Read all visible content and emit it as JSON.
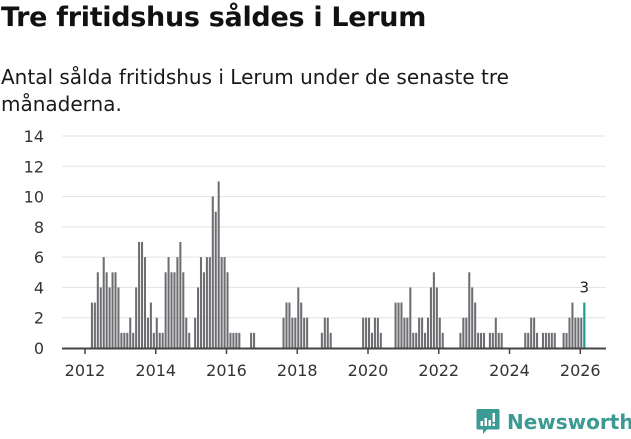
{
  "header": {
    "title": "Tre fritidshus såldes i Lerum",
    "subtitle": "Antal sålda fritidshus i Lerum under de senaste tre månaderna."
  },
  "brand": {
    "name": "Newsworthy",
    "icon": "newsworthy-logo-icon",
    "color": "#3b9a92"
  },
  "colors": {
    "bar": "#6e6d72",
    "highlight": "#1a9e96",
    "grid": "#e3e3e3",
    "axis": "#444444",
    "text": "#333333"
  },
  "chart_data": {
    "type": "bar",
    "title": "Tre fritidshus såldes i Lerum",
    "subtitle": "Antal sålda fritidshus i Lerum under de senaste tre månaderna.",
    "xlabel": "",
    "ylabel": "",
    "ylim": [
      0,
      14
    ],
    "yticks": [
      0,
      2,
      4,
      6,
      8,
      10,
      12,
      14
    ],
    "xticks": [
      "2012",
      "2014",
      "2016",
      "2018",
      "2020",
      "2022",
      "2024",
      "2026"
    ],
    "grid": true,
    "legend": null,
    "start": "2012-01",
    "frequency": "monthly",
    "annotation": {
      "label": "3",
      "period": "2026-02"
    },
    "series": [
      {
        "name": "Antal sålda fritidshus",
        "values_by_year": {
          "2012": [
            0,
            0,
            3,
            3,
            5,
            4,
            6,
            5,
            4,
            5,
            5,
            4
          ],
          "2013": [
            1,
            1,
            1,
            2,
            1,
            4,
            7,
            7,
            6,
            2,
            3,
            1
          ],
          "2014": [
            2,
            1,
            1,
            5,
            6,
            5,
            5,
            6,
            7,
            5,
            2,
            1
          ],
          "2015": [
            0,
            2,
            4,
            6,
            5,
            6,
            6,
            10,
            9,
            11,
            6,
            6
          ],
          "2016": [
            5,
            1,
            1,
            1,
            1,
            0,
            0,
            0,
            1,
            1,
            0,
            0
          ],
          "2017": [
            0,
            0,
            0,
            0,
            0,
            0,
            0,
            2,
            3,
            3,
            2,
            2
          ],
          "2018": [
            4,
            3,
            2,
            2,
            0,
            0,
            0,
            0,
            1,
            2,
            2,
            1
          ],
          "2019": [
            0,
            0,
            0,
            0,
            0,
            0,
            0,
            0,
            0,
            0,
            2,
            2
          ],
          "2020": [
            2,
            1,
            2,
            2,
            1,
            0,
            0,
            0,
            0,
            3,
            3,
            3
          ],
          "2021": [
            2,
            2,
            4,
            1,
            1,
            2,
            2,
            1,
            2,
            4,
            5,
            4
          ],
          "2022": [
            2,
            1,
            0,
            0,
            0,
            0,
            0,
            1,
            2,
            2,
            5,
            4
          ],
          "2023": [
            3,
            1,
            1,
            1,
            0,
            1,
            1,
            2,
            1,
            1,
            0,
            0
          ],
          "2024": [
            0,
            0,
            0,
            0,
            0,
            1,
            1,
            2,
            2,
            1,
            0,
            1
          ],
          "2025": [
            1,
            1,
            1,
            1,
            0,
            0,
            1,
            1,
            2,
            3,
            2,
            2
          ],
          "2026": [
            2,
            3
          ]
        }
      }
    ]
  }
}
